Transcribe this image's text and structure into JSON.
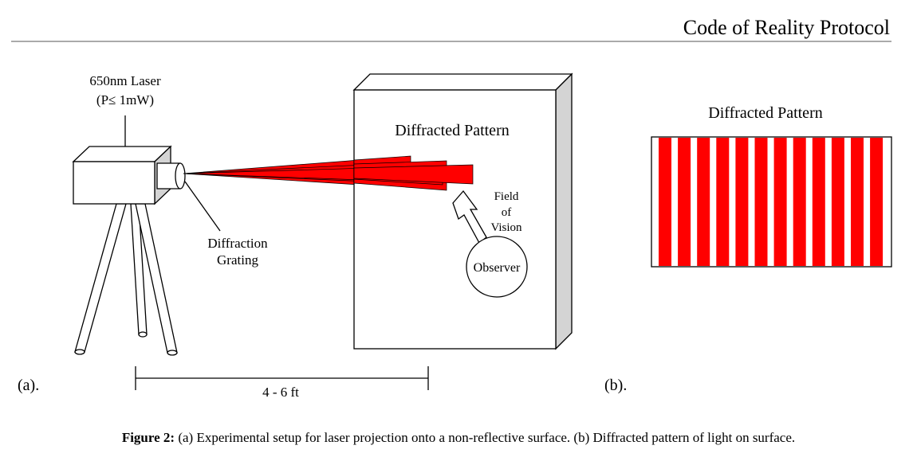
{
  "header": {
    "title": "Code of Reality Protocol"
  },
  "panel_a": {
    "label": "(a).",
    "laser_line1": "650nm Laser",
    "laser_line2": "(P≤ 1mW)",
    "grating_line1": "Diffraction",
    "grating_line2": "Grating",
    "wall_title": "Diffracted Pattern",
    "fov_line1": "Field",
    "fov_line2": "of",
    "fov_line3": "Vision",
    "observer": "Observer",
    "distance": "4 - 6 ft"
  },
  "panel_b": {
    "label": "(b).",
    "title": "Diffracted Pattern",
    "fringe_count": 12
  },
  "caption": {
    "prefix": "Figure 2:",
    "text": "(a) Experimental setup for laser projection onto a non-reflective surface.  (b) Diffracted pattern of light on surface."
  },
  "colors": {
    "laser": "#ff0000",
    "fringe": "#ff0000",
    "wall_side": "#d4d4d4",
    "camera_body": "#ffffff",
    "line": "#000000"
  }
}
